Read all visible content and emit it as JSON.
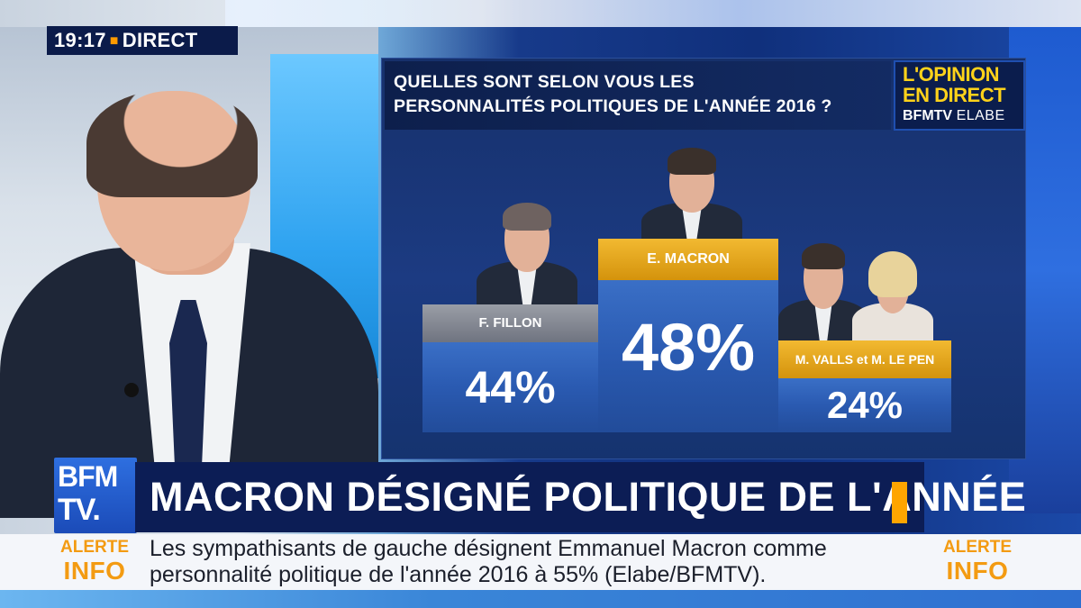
{
  "clock": {
    "time": "19:17",
    "live": "DIRECT"
  },
  "poll": {
    "question_line1": "QUELLES SONT SELON VOUS LES",
    "question_line2": "PERSONNALITÉS POLITIQUES DE L'ANNÉE 2016 ?",
    "badge": {
      "line1": "L'OPINION",
      "line2": "EN DIRECT",
      "brand": "BFMTV",
      "partner": "ELABE"
    },
    "entries": [
      {
        "name": "F. FILLON",
        "value": "44%"
      },
      {
        "name": "E. MACRON",
        "value": "48%"
      },
      {
        "name": "M. VALLS et M. LE PEN",
        "value": "24%"
      }
    ]
  },
  "headline": "MACRON DÉSIGNÉ POLITIQUE DE L'ANNÉE",
  "logo": {
    "line1": "BFM",
    "line2": "TV."
  },
  "ticker": {
    "alert_line1": "ALERTE",
    "alert_line2": "INFO",
    "text": "Les sympathisants de gauche désignent Emmanuel Macron comme personnalité politique de l'année 2016 à 55% (Elabe/BFMTV)."
  },
  "colors": {
    "accent": "#ffa500",
    "navy": "#0c1d55",
    "alert": "#f39b12",
    "badge_yellow": "#ffd21a"
  }
}
